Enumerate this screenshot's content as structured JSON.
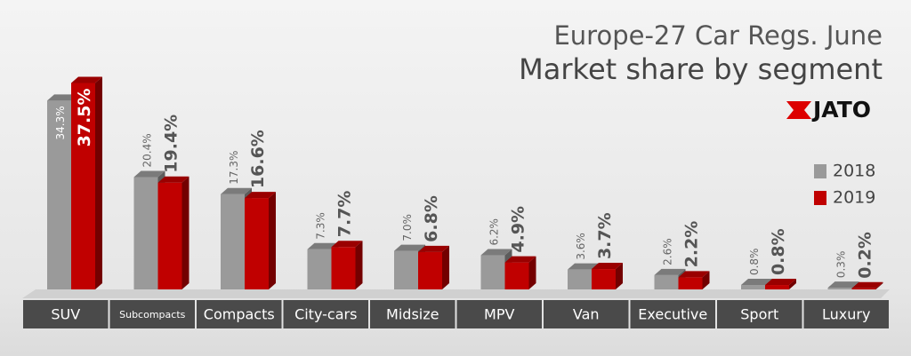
{
  "title": "Europe-27 Car Regs. June",
  "subtitle": "Market share by segment",
  "logo": "JATO",
  "chart_data": {
    "type": "bar3d",
    "categories": [
      "SUV",
      "Subcompacts",
      "Compacts",
      "City-cars",
      "Midsize",
      "MPV",
      "Van",
      "Executive",
      "Sport",
      "Luxury"
    ],
    "series": [
      {
        "name": "2018",
        "color": "#9a9a9a",
        "values": [
          34.3,
          20.4,
          17.3,
          7.3,
          7.0,
          6.2,
          3.6,
          2.6,
          0.8,
          0.3
        ],
        "value_labels": [
          "34.3%",
          "20.4%",
          "17.3%",
          "7.3%",
          "7.0%",
          "6.2%",
          "3.6%",
          "2.6%",
          "0.8%",
          "0.3%"
        ]
      },
      {
        "name": "2019",
        "color": "#c00000",
        "values": [
          37.5,
          19.4,
          16.6,
          7.7,
          6.8,
          4.9,
          3.7,
          2.2,
          0.8,
          0.2
        ],
        "value_labels": [
          "37.5%",
          "19.4%",
          "16.6%",
          "7.7%",
          "6.8%",
          "4.9%",
          "3.7%",
          "2.2%",
          "0.8%",
          "0.2%"
        ]
      }
    ]
  }
}
